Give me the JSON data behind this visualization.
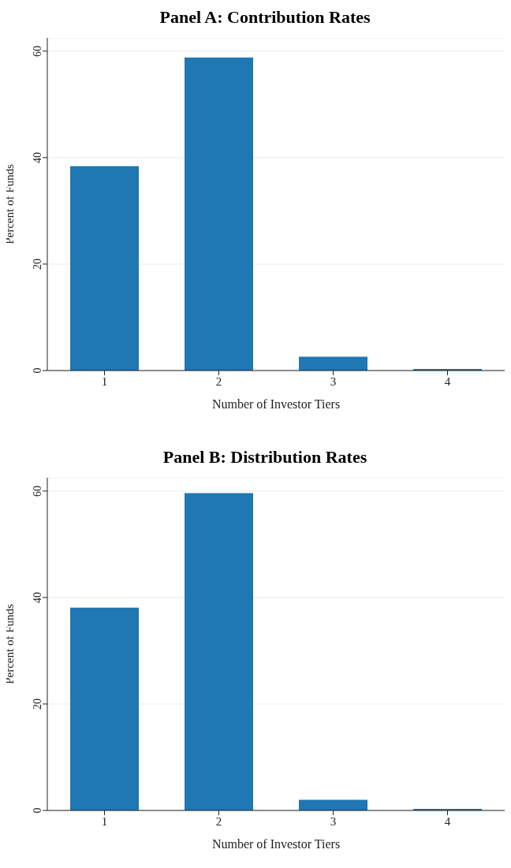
{
  "chart_data": [
    {
      "type": "bar",
      "title": "Panel A: Contribution Rates",
      "xlabel": "Number of Investor Tiers",
      "ylabel": "Percent of Funds",
      "categories": [
        "1",
        "2",
        "3",
        "4"
      ],
      "values": [
        38.4,
        58.8,
        2.6,
        0.3
      ],
      "color": "#1f77b4",
      "ylim": [
        0,
        62.5
      ],
      "yticks": [
        0,
        20,
        40,
        60
      ],
      "grid": "y"
    },
    {
      "type": "bar",
      "title": "Panel B: Distribution Rates",
      "xlabel": "Number of Investor Tiers",
      "ylabel": "Percent of Funds",
      "categories": [
        "1",
        "2",
        "3",
        "4"
      ],
      "values": [
        38.1,
        59.6,
        2.0,
        0.3
      ],
      "color": "#1f77b4",
      "ylim": [
        0,
        62.5
      ],
      "yticks": [
        0,
        20,
        40,
        60
      ],
      "grid": "y"
    }
  ]
}
